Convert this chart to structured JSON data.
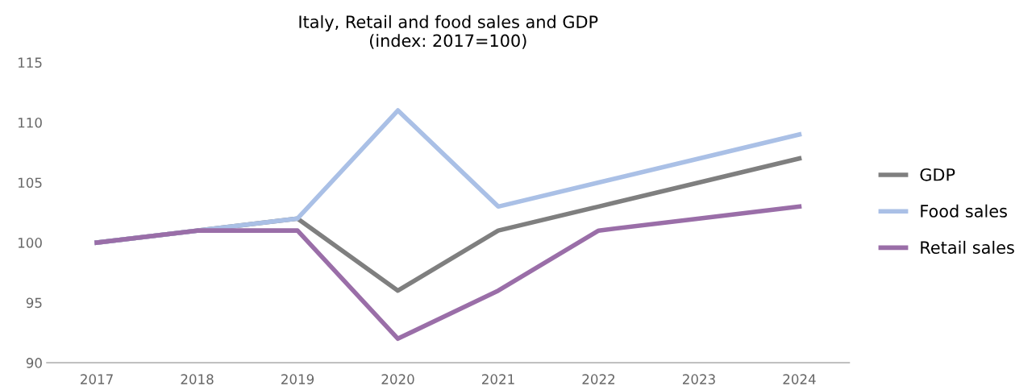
{
  "chart_data": {
    "type": "line",
    "title": "Italy, Retail and food sales and GDP\n(index: 2017=100)",
    "categories": [
      "2017",
      "2018",
      "2019",
      "2020",
      "2021",
      "2022",
      "2023",
      "2024"
    ],
    "series": [
      {
        "name": "GDP",
        "color": "#7f7f7f",
        "values": [
          100,
          101,
          102,
          96,
          101,
          103,
          105,
          107
        ]
      },
      {
        "name": "Food sales",
        "color": "#aac0e6",
        "values": [
          100,
          101,
          102,
          111,
          103,
          105,
          107,
          109
        ]
      },
      {
        "name": "Retail sales",
        "color": "#9a6ea8",
        "values": [
          100,
          101,
          101,
          92,
          96,
          101,
          102,
          103
        ]
      }
    ],
    "ylim": [
      90,
      115
    ],
    "yticks": [
      90,
      95,
      100,
      105,
      110,
      115
    ],
    "grid": false,
    "legend": "right",
    "marker": "none",
    "line_style": "solid"
  }
}
